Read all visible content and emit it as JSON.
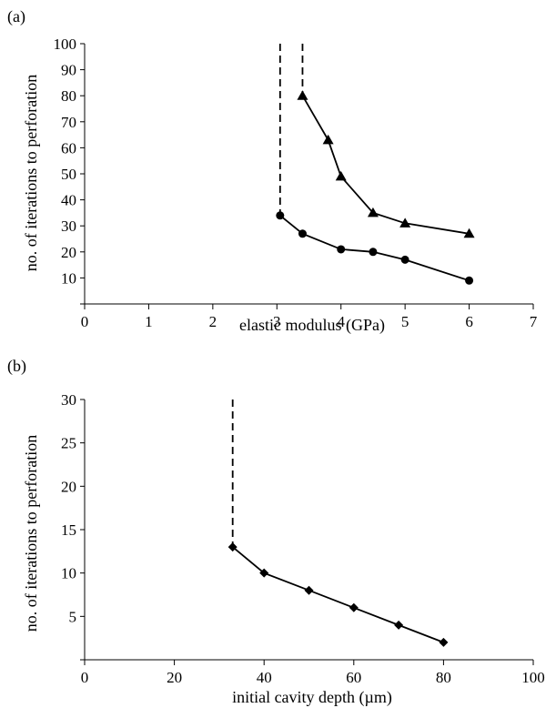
{
  "chart_data": [
    {
      "panel_label": "(a)",
      "type": "line",
      "xlabel": "elastic modulus (GPa)",
      "ylabel": "no. of iterations to perforation",
      "xlim": [
        0,
        7
      ],
      "ylim": [
        0,
        100
      ],
      "xticks": [
        "0",
        "1",
        "2",
        "3",
        "4",
        "5",
        "6",
        "7"
      ],
      "yticks": [
        "10",
        "20",
        "30",
        "40",
        "50",
        "60",
        "70",
        "80",
        "90",
        "100"
      ],
      "grid": false,
      "series": [
        {
          "marker": "triangle",
          "x": [
            3.4,
            3.8,
            4.0,
            4.5,
            5.0,
            6.0
          ],
          "y": [
            80,
            63,
            49,
            35,
            31,
            27
          ],
          "dashed_asymptote_x": 3.4
        },
        {
          "marker": "circle",
          "x": [
            3.05,
            3.4,
            4.0,
            4.5,
            5.0,
            6.0
          ],
          "y": [
            34,
            27,
            21,
            20,
            17,
            9
          ],
          "dashed_asymptote_x": 3.05
        }
      ]
    },
    {
      "panel_label": "(b)",
      "type": "line",
      "xlabel": "initial cavity depth (µm)",
      "ylabel": "no. of iterations to perforation",
      "xlim": [
        0,
        100
      ],
      "ylim": [
        0,
        30
      ],
      "xticks": [
        "0",
        "20",
        "40",
        "60",
        "80",
        "100"
      ],
      "yticks": [
        "5",
        "10",
        "15",
        "20",
        "25",
        "30"
      ],
      "grid": false,
      "series": [
        {
          "marker": "diamond",
          "x": [
            33,
            40,
            50,
            60,
            70,
            80
          ],
          "y": [
            13,
            10,
            8,
            6,
            4,
            2
          ],
          "dashed_asymptote_x": 33
        }
      ]
    }
  ]
}
